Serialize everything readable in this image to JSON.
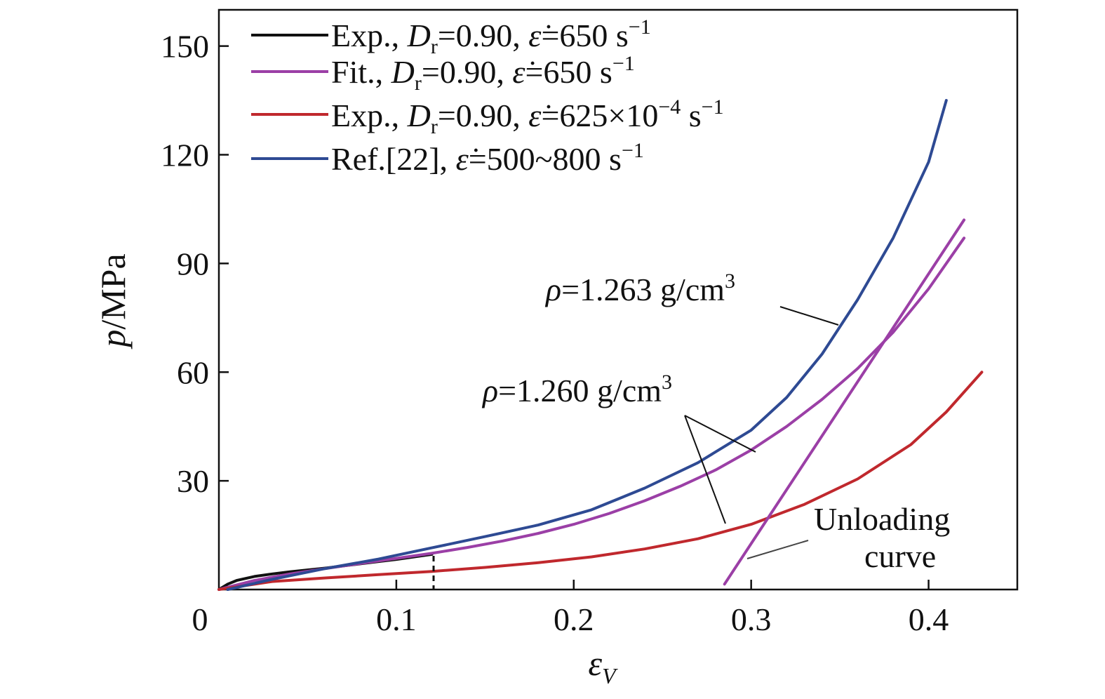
{
  "chart_data": {
    "type": "line",
    "xlabel": "ε",
    "xlabel_sub": "V",
    "ylabel": "p/MPa",
    "xlim": [
      0,
      0.45
    ],
    "ylim": [
      0,
      160
    ],
    "x_ticks": [
      0,
      0.1,
      0.2,
      0.3,
      0.4
    ],
    "x_tick_labels": [
      "0",
      "0.1",
      "0.2",
      "0.3",
      "0.4"
    ],
    "y_ticks": [
      30,
      60,
      90,
      120,
      150
    ],
    "y_tick_labels": [
      "30",
      "60",
      "90",
      "120",
      "150"
    ],
    "grid": false,
    "legend_placement": "top-left",
    "series": [
      {
        "name": "Exp., Dr=0.90, ε̇=650 s⁻¹",
        "color": "#111111",
        "x": [
          0,
          0.005,
          0.01,
          0.02,
          0.03,
          0.04,
          0.05,
          0.06,
          0.07,
          0.08,
          0.09,
          0.1,
          0.11,
          0.12
        ],
        "y": [
          0,
          1.5,
          2.5,
          3.6,
          4.3,
          4.9,
          5.4,
          5.9,
          6.5,
          7.1,
          7.7,
          8.3,
          9.0,
          9.7
        ]
      },
      {
        "name": "Fit., Dr=0.90, ε̇=650 s⁻¹",
        "color": "#9b3fa6",
        "x": [
          0,
          0.02,
          0.04,
          0.06,
          0.08,
          0.1,
          0.12,
          0.14,
          0.16,
          0.18,
          0.2,
          0.22,
          0.24,
          0.26,
          0.28,
          0.3,
          0.32,
          0.34,
          0.36,
          0.38,
          0.4,
          0.42
        ],
        "y": [
          0,
          2.5,
          4.3,
          5.8,
          7.2,
          8.6,
          10,
          11.6,
          13.4,
          15.5,
          18,
          21,
          24.5,
          28.5,
          33,
          38.5,
          45,
          52.5,
          61,
          71,
          83,
          97
        ]
      },
      {
        "name": "Exp., Dr=0.90, ε̇=625×10⁻⁴ s⁻¹",
        "color": "#c0282d",
        "x": [
          0,
          0.03,
          0.06,
          0.09,
          0.12,
          0.15,
          0.18,
          0.21,
          0.24,
          0.27,
          0.3,
          0.33,
          0.36,
          0.39,
          0.41,
          0.43
        ],
        "y": [
          0,
          2.2,
          3.2,
          4.1,
          5.0,
          6.1,
          7.4,
          9.0,
          11.2,
          14.0,
          18.0,
          23.5,
          30.5,
          40.0,
          49.0,
          60.0
        ]
      },
      {
        "name": "Ref.[22], ε̇=500~800 s⁻¹",
        "color": "#2e4a93",
        "x": [
          0.005,
          0.03,
          0.06,
          0.09,
          0.12,
          0.15,
          0.18,
          0.21,
          0.24,
          0.27,
          0.3,
          0.32,
          0.34,
          0.36,
          0.38,
          0.4,
          0.41
        ],
        "y": [
          0,
          2.8,
          5.8,
          8.4,
          11.5,
          14.6,
          17.8,
          22.0,
          28.0,
          35.0,
          44.0,
          53.0,
          65.0,
          80.0,
          97.0,
          118.0,
          135.0
        ]
      },
      {
        "name": "Unloading curve",
        "color": "#9b3fa6",
        "x": [
          0.285,
          0.42
        ],
        "y": [
          1.5,
          102
        ]
      }
    ],
    "annotations": [
      {
        "text": "ρ=1.263 g/cm³",
        "x": 0.31,
        "y": 79
      },
      {
        "text": "ρ=1.260 g/cm³",
        "x": 0.28,
        "y": 49
      },
      {
        "text": "Unloading",
        "x": 0.365,
        "y": 19
      },
      {
        "text": "curve",
        "x": 0.365,
        "y": 8.5
      }
    ]
  }
}
